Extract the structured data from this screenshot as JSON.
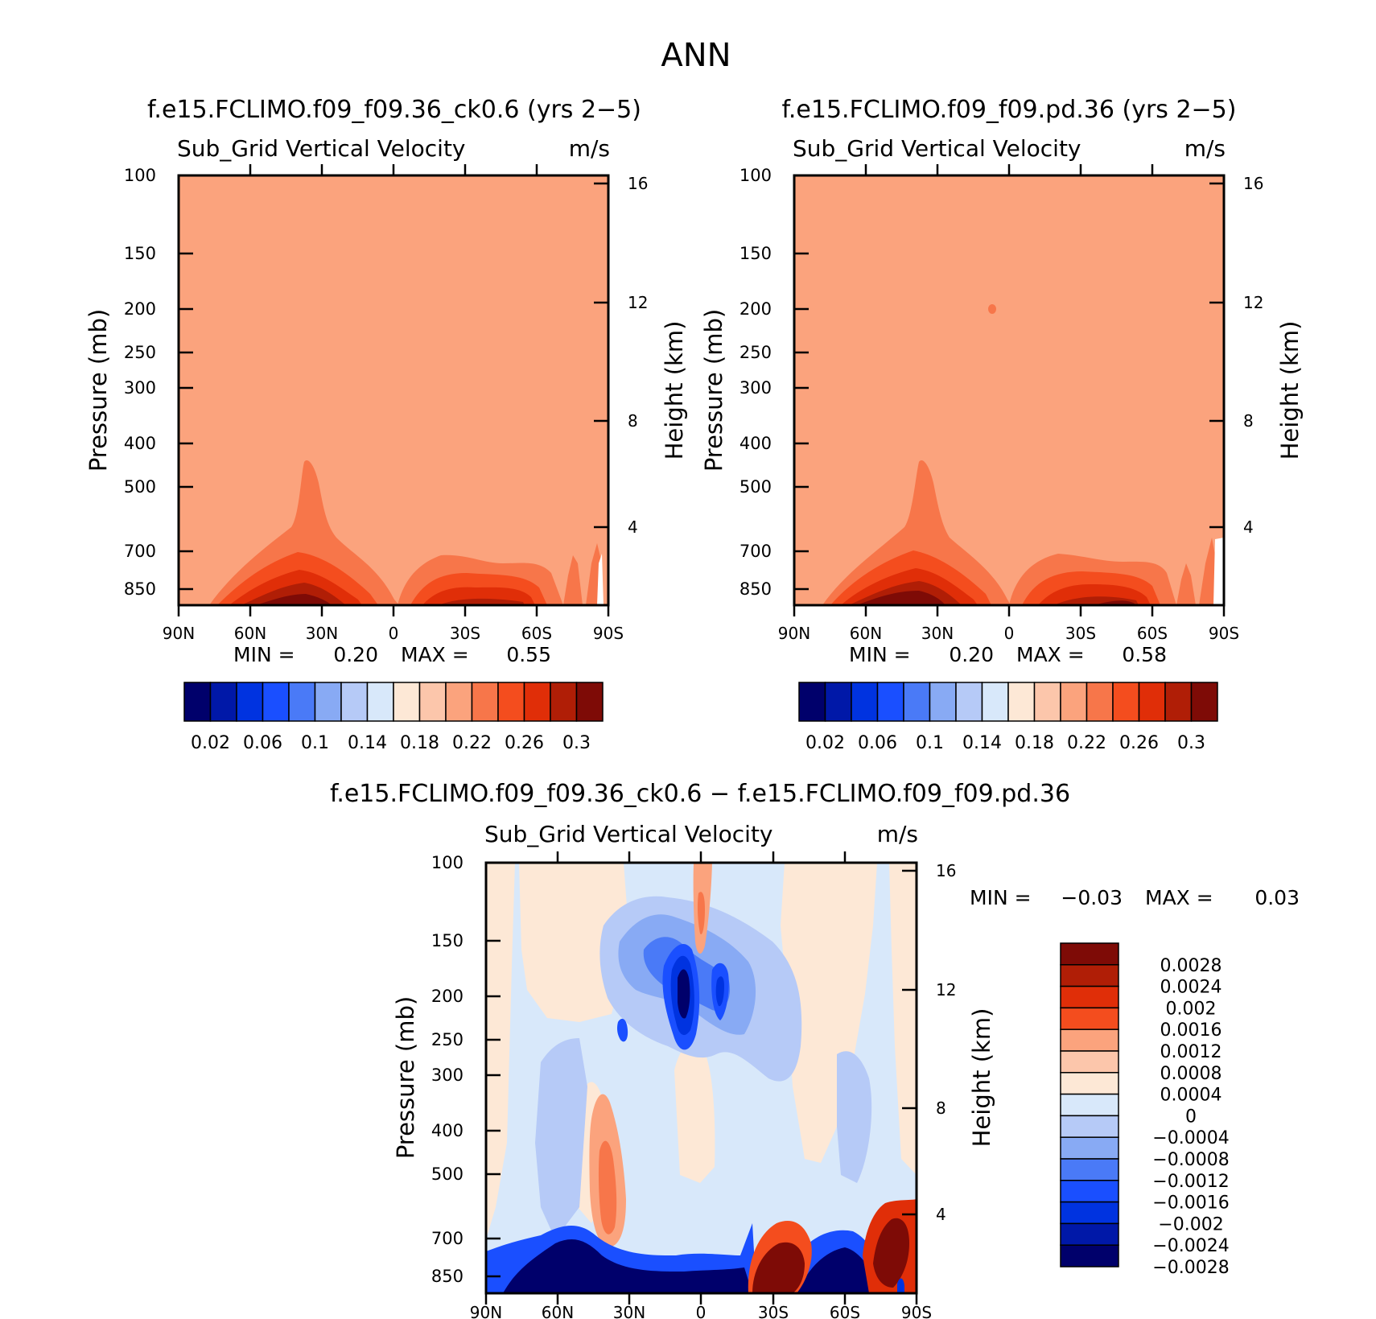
{
  "page_title": "ANN",
  "chart_data": [
    {
      "type": "heatmap",
      "case_title": "f.e15.FCLIMO.f09_f09.36_ck0.6 (yrs 2−5)",
      "variable": "Sub_Grid Vertical Velocity",
      "units": "m/s",
      "ylabel": "Pressure (mb)",
      "ylabel_right": "Height (km)",
      "x_ticks": [
        "90N",
        "60N",
        "30N",
        "0",
        "30S",
        "60S",
        "90S"
      ],
      "x_values": [
        90,
        60,
        30,
        0,
        -30,
        -60,
        -90
      ],
      "y_ticks": [
        100,
        150,
        200,
        250,
        300,
        400,
        500,
        700,
        850
      ],
      "y_ticks_right": [
        16,
        12,
        8,
        4
      ],
      "ylim": [
        100,
        925
      ],
      "log_pressure": true,
      "min_label": "MIN =",
      "min_value": "0.20",
      "max_label": "MAX =",
      "max_value": "0.55",
      "background_level": "0.2–0.22",
      "colorbar": {
        "orientation": "horizontal",
        "colors": [
          "#00006b",
          "#0018a8",
          "#0033e0",
          "#1a4fff",
          "#4a7af7",
          "#88aaf4",
          "#b6caf7",
          "#d8e8fa",
          "#fde8d6",
          "#fcc6ab",
          "#fba37d",
          "#f7764a",
          "#f44d1e",
          "#e02e08",
          "#b01e06",
          "#7e0b06"
        ],
        "labels": [
          "0.02",
          "0.06",
          "0.1",
          "0.14",
          "0.18",
          "0.22",
          "0.26",
          "0.3"
        ]
      }
    },
    {
      "type": "heatmap",
      "case_title": "f.e15.FCLIMO.f09_f09.pd.36 (yrs 2−5)",
      "variable": "Sub_Grid Vertical Velocity",
      "units": "m/s",
      "ylabel": "Pressure (mb)",
      "ylabel_right": "Height (km)",
      "x_ticks": [
        "90N",
        "60N",
        "30N",
        "0",
        "30S",
        "60S",
        "90S"
      ],
      "x_values": [
        90,
        60,
        30,
        0,
        -30,
        -60,
        -90
      ],
      "y_ticks": [
        100,
        150,
        200,
        250,
        300,
        400,
        500,
        700,
        850
      ],
      "y_ticks_right": [
        16,
        12,
        8,
        4
      ],
      "ylim": [
        100,
        925
      ],
      "log_pressure": true,
      "min_label": "MIN =",
      "min_value": "0.20",
      "max_label": "MAX =",
      "max_value": "0.58",
      "background_level": "0.2–0.22",
      "colorbar": {
        "orientation": "horizontal",
        "colors": [
          "#00006b",
          "#0018a8",
          "#0033e0",
          "#1a4fff",
          "#4a7af7",
          "#88aaf4",
          "#b6caf7",
          "#d8e8fa",
          "#fde8d6",
          "#fcc6ab",
          "#fba37d",
          "#f7764a",
          "#f44d1e",
          "#e02e08",
          "#b01e06",
          "#7e0b06"
        ],
        "labels": [
          "0.02",
          "0.06",
          "0.1",
          "0.14",
          "0.18",
          "0.22",
          "0.26",
          "0.3"
        ]
      }
    },
    {
      "type": "heatmap",
      "case_title": "f.e15.FCLIMO.f09_f09.36_ck0.6 − f.e15.FCLIMO.f09_f09.pd.36",
      "variable": "Sub_Grid Vertical Velocity",
      "units": "m/s",
      "ylabel": "Pressure (mb)",
      "ylabel_right": "Height (km)",
      "x_ticks": [
        "90N",
        "60N",
        "30N",
        "0",
        "30S",
        "60S",
        "90S"
      ],
      "x_values": [
        90,
        60,
        30,
        0,
        -30,
        -60,
        -90
      ],
      "y_ticks": [
        100,
        150,
        200,
        250,
        300,
        400,
        500,
        700,
        850
      ],
      "y_ticks_right": [
        16,
        12,
        8,
        4
      ],
      "ylim": [
        100,
        925
      ],
      "log_pressure": true,
      "min_label": "MIN =",
      "min_value": "−0.03",
      "max_label": "MAX =",
      "max_value": "0.03",
      "colorbar": {
        "orientation": "vertical",
        "colors": [
          "#7e0b06",
          "#b01e06",
          "#e02e08",
          "#f44d1e",
          "#fba37d",
          "#fcc6ab",
          "#fde8d6",
          "#d8e8fa",
          "#b6caf7",
          "#88aaf4",
          "#4a7af7",
          "#1a4fff",
          "#0033e0",
          "#0018a8",
          "#00006b"
        ],
        "labels": [
          "0.0028",
          "0.0024",
          "0.002",
          "0.0016",
          "0.0012",
          "0.0008",
          "0.0004",
          "0",
          "−0.0004",
          "−0.0008",
          "−0.0012",
          "−0.0016",
          "−0.002",
          "−0.0024",
          "−0.0028"
        ]
      }
    }
  ]
}
